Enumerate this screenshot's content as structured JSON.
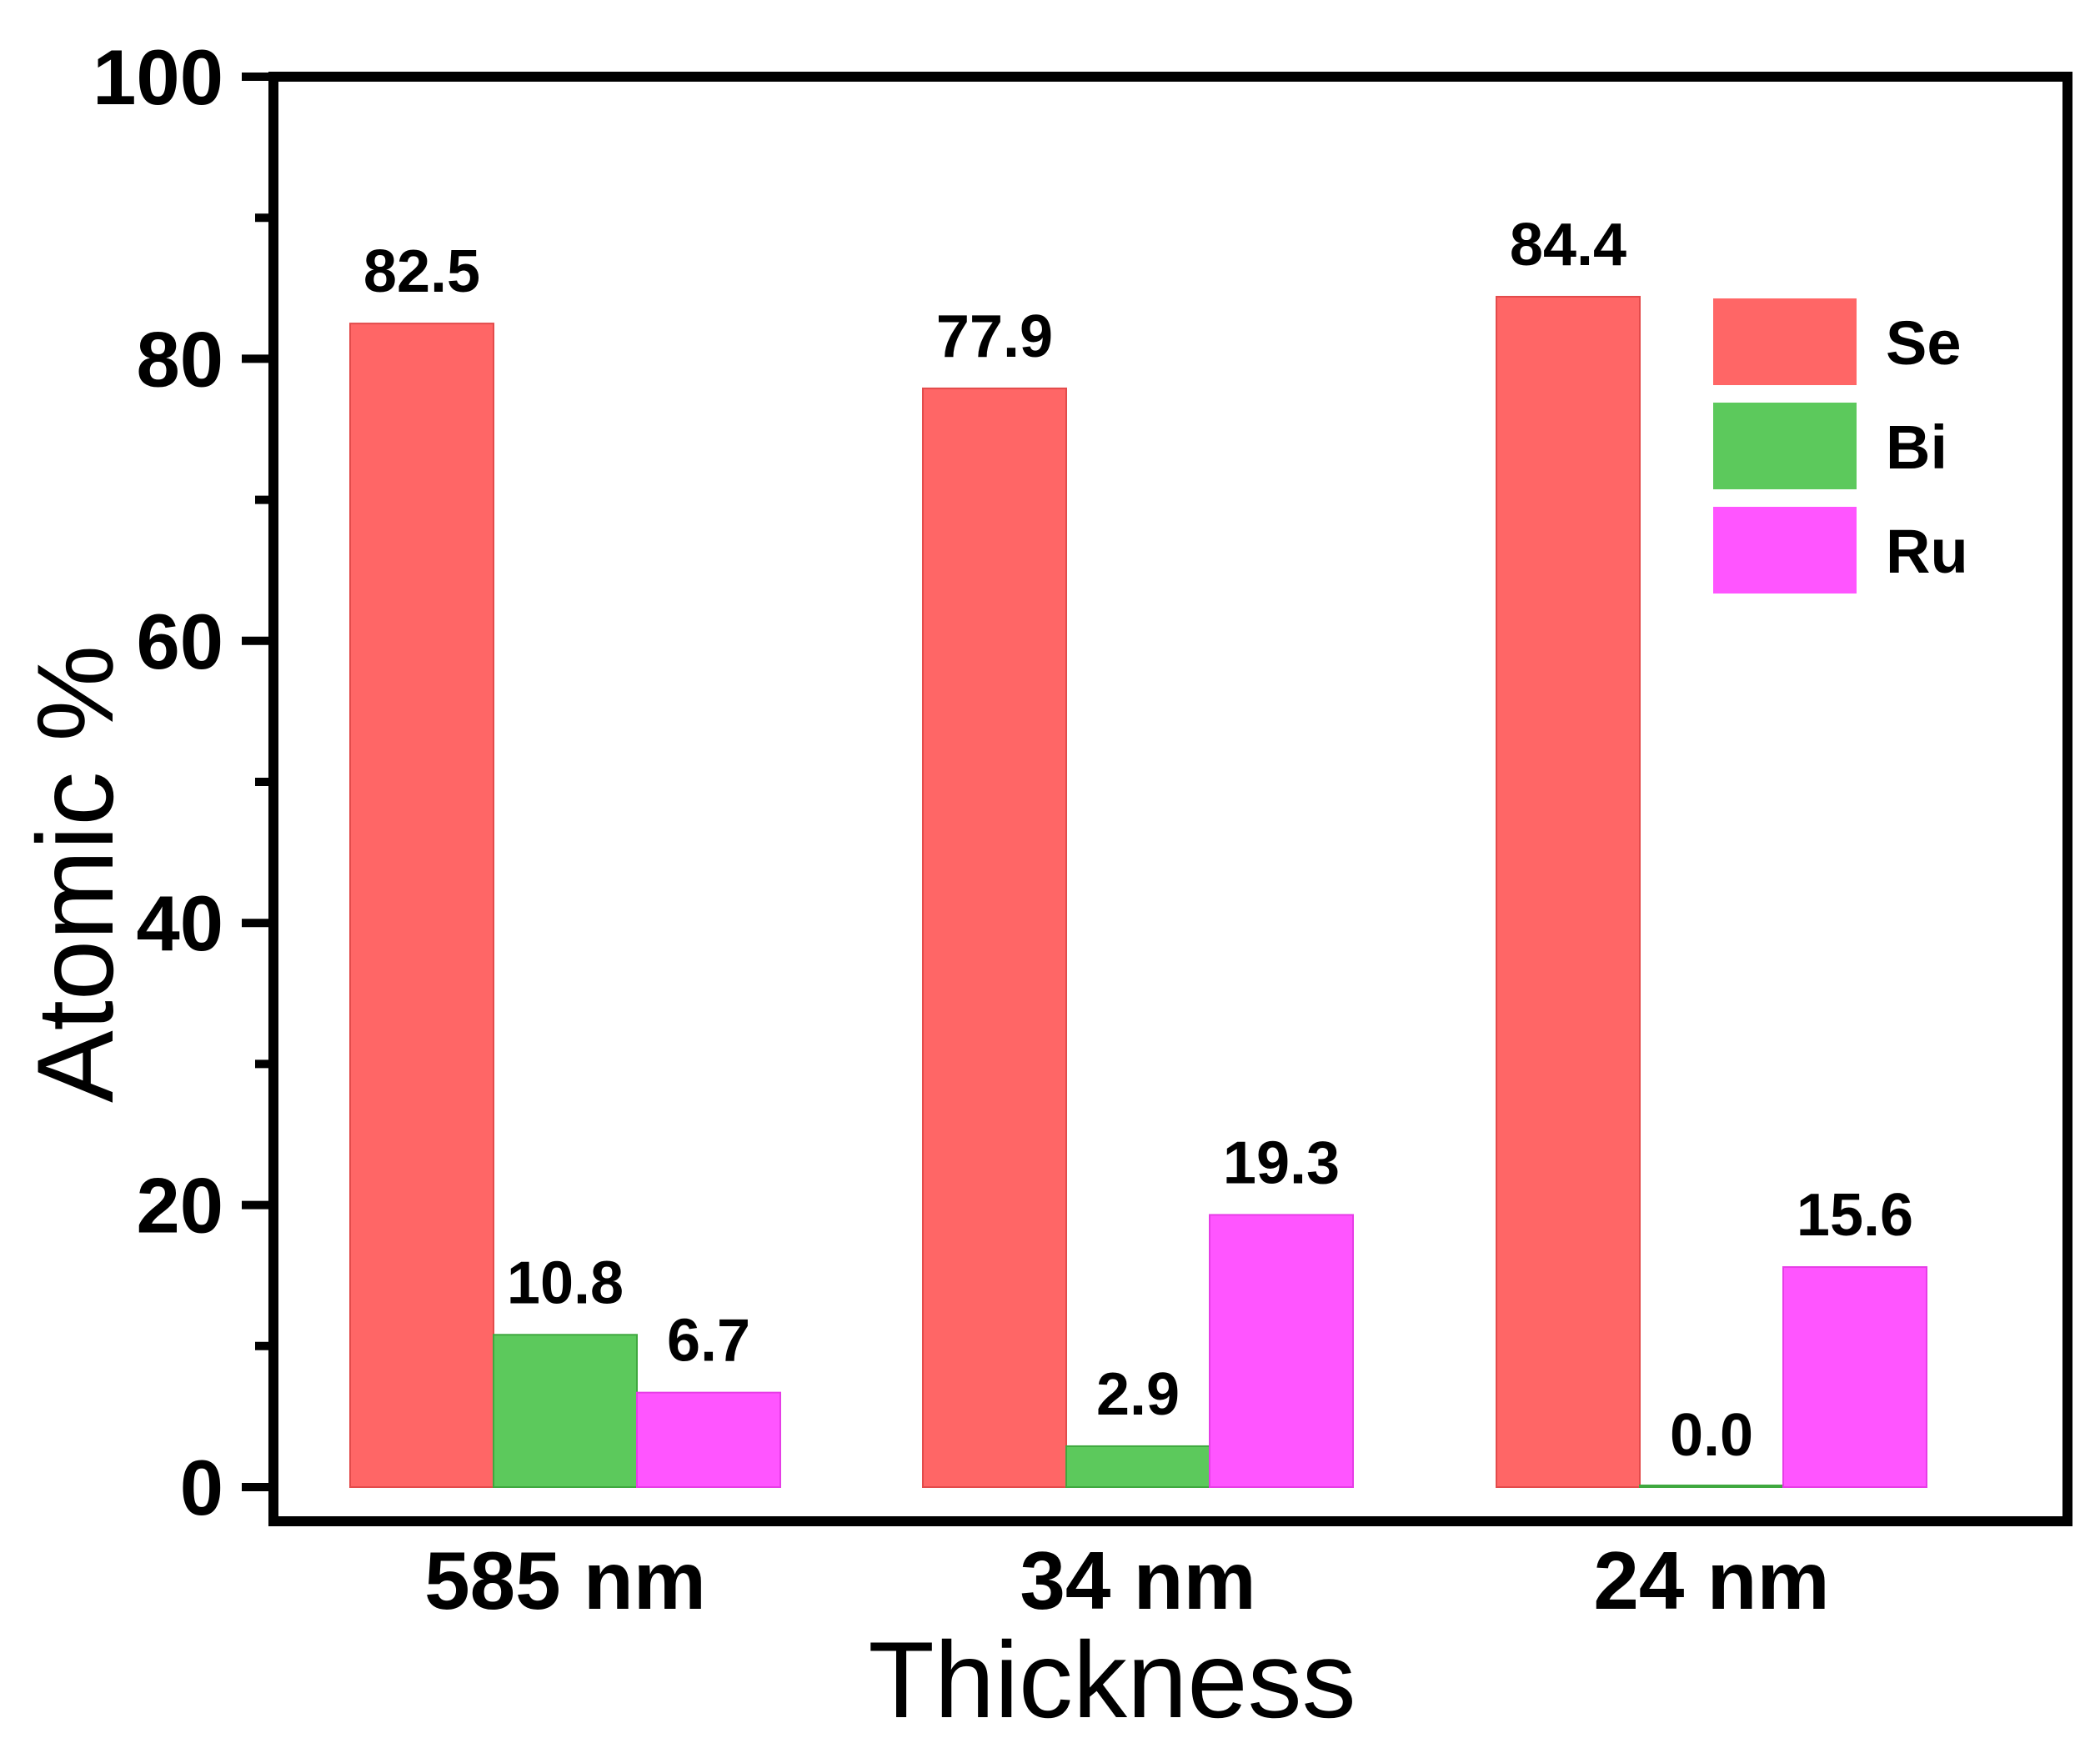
{
  "chart_data": {
    "type": "bar",
    "title": "",
    "xlabel": "Thickness",
    "ylabel": "Atomic %",
    "ylim": [
      0,
      100
    ],
    "yticks": [
      0,
      20,
      40,
      60,
      80,
      100
    ],
    "categories": [
      "585 nm",
      "34 nm",
      "24 nm"
    ],
    "series": [
      {
        "name": "Se",
        "color": "#FF6666",
        "values": [
          82.5,
          77.9,
          84.4
        ],
        "labels": [
          "82.5",
          "77.9",
          "84.4"
        ]
      },
      {
        "name": "Bi",
        "color": "#5CC95C",
        "values": [
          10.8,
          2.9,
          0.0
        ],
        "labels": [
          "10.8",
          "2.9",
          "0.0"
        ]
      },
      {
        "name": "Ru",
        "color": "#FF55FF",
        "values": [
          6.7,
          19.3,
          15.6
        ],
        "labels": [
          "6.7",
          "19.3",
          "15.6"
        ]
      }
    ],
    "legend_position": "top-right",
    "grid": false
  }
}
